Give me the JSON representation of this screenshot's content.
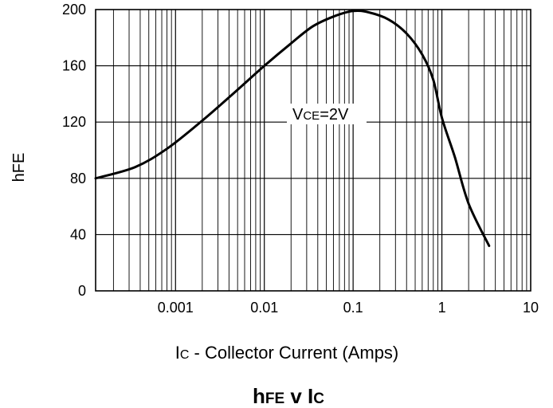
{
  "chart_data": {
    "type": "line",
    "x_scale": "log",
    "xlim": [
      0.0001259,
      10
    ],
    "ylim": [
      0,
      200
    ],
    "grid": true,
    "x_ticks": [
      "0.001",
      "0.01",
      "0.1",
      "1",
      "10"
    ],
    "y_ticks": [
      "0",
      "40",
      "80",
      "120",
      "160",
      "200"
    ],
    "ylabel": "hFE",
    "xlabel": {
      "sym": "I",
      "sub": "C",
      "rest": " - Collector Current (Amps)"
    },
    "title": {
      "a": "h",
      "b": "FE",
      "c": " v I",
      "d": "C"
    },
    "annotation": {
      "sym": "V",
      "sub": "CE",
      "rest": "=2V"
    },
    "series": [
      {
        "points": [
          [
            0.000126,
            80
          ],
          [
            0.00035,
            88
          ],
          [
            0.0008,
            101
          ],
          [
            0.002,
            121
          ],
          [
            0.005,
            143
          ],
          [
            0.01,
            160
          ],
          [
            0.02,
            176
          ],
          [
            0.035,
            188
          ],
          [
            0.06,
            195
          ],
          [
            0.1,
            199
          ],
          [
            0.15,
            198
          ],
          [
            0.25,
            193
          ],
          [
            0.4,
            183
          ],
          [
            0.6,
            168
          ],
          [
            0.8,
            150
          ],
          [
            1.0,
            123
          ],
          [
            1.4,
            95
          ],
          [
            2.0,
            62
          ],
          [
            3.4,
            32
          ]
        ]
      }
    ]
  }
}
